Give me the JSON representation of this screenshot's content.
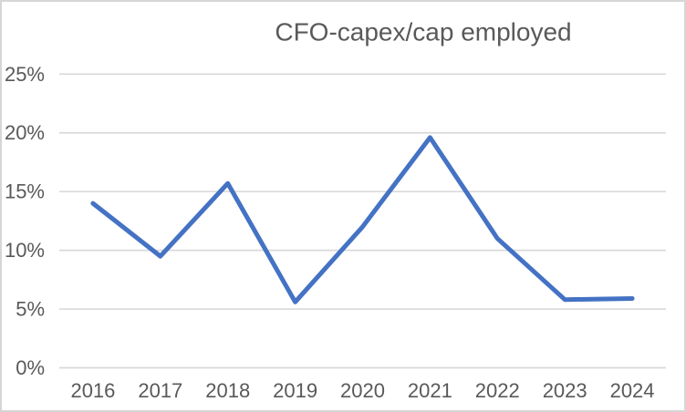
{
  "window": {
    "background": "#ffffff",
    "border_color": "#d6d6d6"
  },
  "chart_data": {
    "type": "line",
    "title": "CFO-capex/cap employed",
    "categories": [
      "2016",
      "2017",
      "2018",
      "2019",
      "2020",
      "2021",
      "2022",
      "2023",
      "2024"
    ],
    "series": [
      {
        "name": "CFO-capex/cap employed",
        "values": [
          14.0,
          9.5,
          15.7,
          5.6,
          12.0,
          19.6,
          11.0,
          5.8,
          5.9
        ]
      }
    ],
    "xlabel": "",
    "ylabel": "",
    "ylim": [
      0,
      25
    ],
    "ytick_step": 5,
    "ytick_labels": [
      "0%",
      "5%",
      "10%",
      "15%",
      "20%",
      "25%"
    ],
    "grid": true,
    "legend": "none",
    "colors": {
      "line": "#4472C4",
      "gridline": "#D9D9D9",
      "axis_text": "#595959",
      "title_text": "#595959"
    }
  }
}
